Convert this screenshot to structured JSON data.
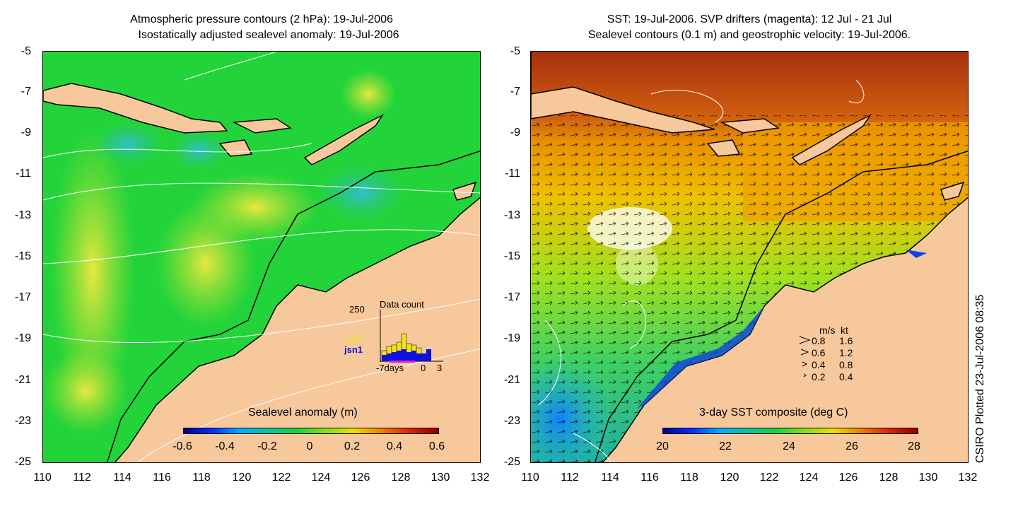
{
  "left_panel": {
    "title_line1": "Atmospheric pressure contours (2 hPa): 19-Jul-2006",
    "title_line2": "Isostatically adjusted sealevel anomaly: 19-Jul-2006",
    "colorbar_title": "Sealevel anomaly (m)",
    "colorbar_ticks": [
      "-0.6",
      "-0.4",
      "-0.2",
      "0",
      "0.2",
      "0.4",
      "0.6"
    ],
    "inset": {
      "title": "Data count",
      "ymax_label": "250",
      "series_labels": [
        "GFO",
        "jsn1"
      ],
      "xlabel": "-7days",
      "xticks": [
        "0",
        "3"
      ],
      "series_colors": {
        "GFO": "#f0e020",
        "jsn1": "#1010e0"
      }
    }
  },
  "right_panel": {
    "title_line1": "SST: 19-Jul-2006. SVP drifters (magenta): 12 Jul - 21 Jul",
    "title_line2": "Sealevel contours (0.1 m) and geostrophic velocity: 19-Jul-2006.",
    "colorbar_title": "3-day SST composite (deg C)",
    "colorbar_ticks": [
      "20",
      "22",
      "24",
      "26",
      "28"
    ],
    "legend": {
      "header": [
        "m/s",
        "kt"
      ],
      "rows": [
        [
          "0.8",
          "1.6"
        ],
        [
          "0.6",
          "1.2"
        ],
        [
          "0.4",
          "0.8"
        ],
        [
          "0.2",
          "0.4"
        ]
      ]
    }
  },
  "axes": {
    "y_ticks": [
      "-5",
      "-7",
      "-9",
      "-11",
      "-13",
      "-15",
      "-17",
      "-19",
      "-21",
      "-23",
      "-25"
    ],
    "x_ticks": [
      "110",
      "112",
      "114",
      "116",
      "118",
      "120",
      "122",
      "124",
      "126",
      "128",
      "130",
      "132"
    ]
  },
  "credit": "CSIRO Plotted 23-Jul-2006 08:35",
  "colors": {
    "land": "#f7c89c",
    "sla_green": "#20d020",
    "sst_orange": "#f0a000",
    "sst_brown": "#a02000"
  }
}
